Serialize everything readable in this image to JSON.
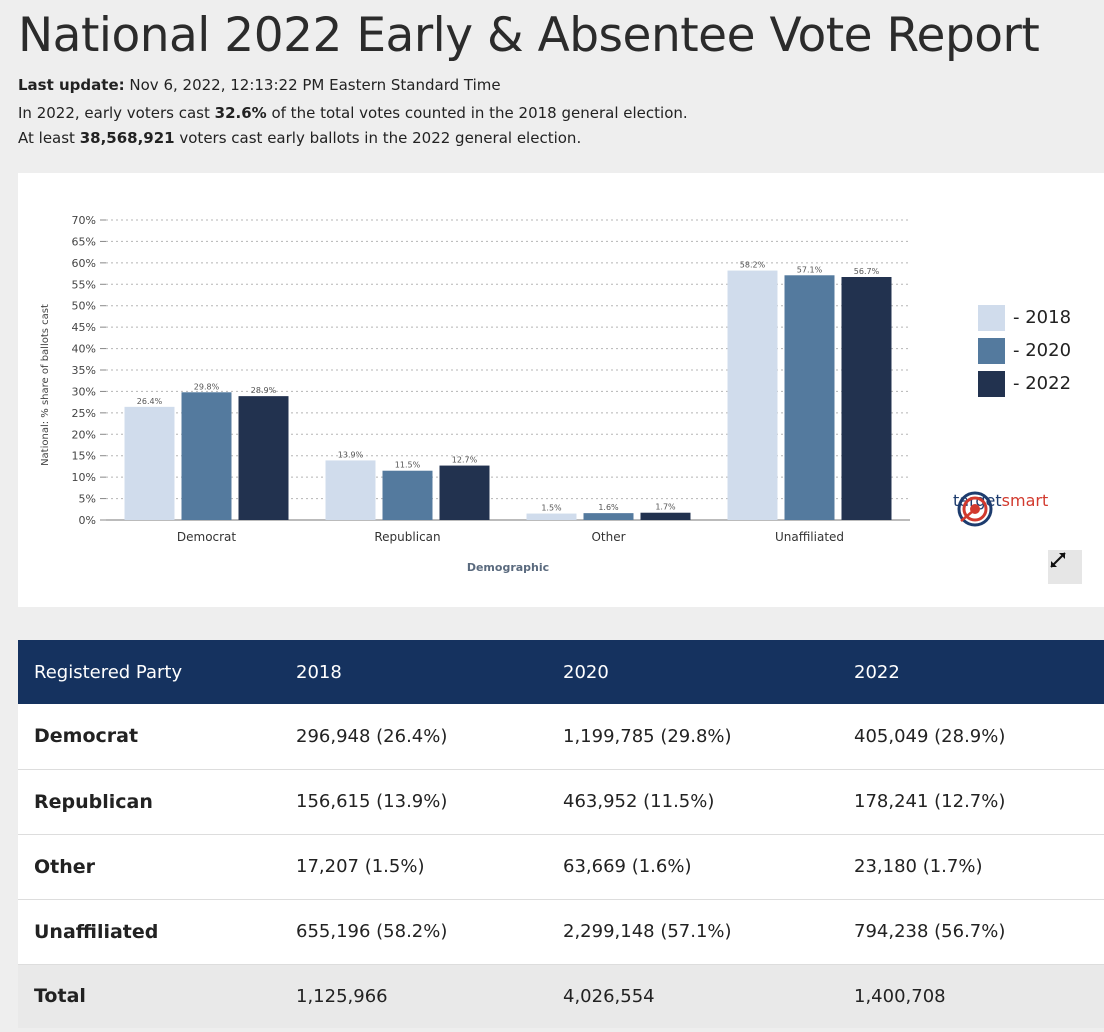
{
  "page": {
    "title": "National 2022 Early & Absentee Vote Report",
    "last_update_label": "Last update:",
    "last_update_value": "Nov 6, 2022, 12:13:22 PM Eastern Standard Time",
    "line1_pre": "In 2022, early voters cast ",
    "line1_bold": "32.6%",
    "line1_post": " of the total votes counted in the 2018 general election.",
    "line2_pre": "At least ",
    "line2_bold": "38,568,921",
    "line2_post": " voters cast early ballots in the 2022 general election."
  },
  "chart_data": {
    "type": "bar",
    "categories": [
      "Democrat",
      "Republican",
      "Other",
      "Unaffiliated"
    ],
    "series": [
      {
        "name": "2018",
        "values": [
          26.4,
          13.9,
          1.5,
          58.2
        ],
        "color": "#d0dcec"
      },
      {
        "name": "2020",
        "values": [
          29.8,
          11.5,
          1.6,
          57.1
        ],
        "color": "#547a9e"
      },
      {
        "name": "2022",
        "values": [
          28.9,
          12.7,
          1.7,
          56.7
        ],
        "color": "#22324f"
      }
    ],
    "data_labels": [
      [
        "26.4%",
        "13.9%",
        "1.5%",
        "58.2%"
      ],
      [
        "29.8%",
        "11.5%",
        "1.6%",
        "57.1%"
      ],
      [
        "28.9%",
        "12.7%",
        "1.7%",
        "56.7%"
      ]
    ],
    "yticks": [
      0,
      5,
      10,
      15,
      20,
      25,
      30,
      35,
      40,
      45,
      50,
      55,
      60,
      65,
      70
    ],
    "ytick_labels": [
      "0%",
      "5%",
      "10%",
      "15%",
      "20%",
      "25%",
      "30%",
      "35%",
      "40%",
      "45%",
      "50%",
      "55%",
      "60%",
      "65%",
      "70%"
    ],
    "ylim": [
      0,
      70
    ],
    "title": "",
    "xlabel": "Demographic",
    "ylabel": "National: % share of ballots cast",
    "grid": true,
    "legend_position": "right"
  },
  "legend": {
    "items": [
      {
        "label": "- 2018",
        "color": "#d0dcec"
      },
      {
        "label": "- 2020",
        "color": "#547a9e"
      },
      {
        "label": "- 2022",
        "color": "#22324f"
      }
    ]
  },
  "brand": {
    "text_a": "target",
    "text_b": "smart"
  },
  "icons": {
    "expand": "expand-icon",
    "brand_logo": "target-logo-icon"
  },
  "table": {
    "headers": [
      "Registered Party",
      "2018",
      "2020",
      "2022"
    ],
    "rows": [
      {
        "party": "Democrat",
        "y2018": "296,948 (26.4%)",
        "y2020": "1,199,785 (29.8%)",
        "y2022": "405,049 (28.9%)"
      },
      {
        "party": "Republican",
        "y2018": "156,615 (13.9%)",
        "y2020": "463,952 (11.5%)",
        "y2022": "178,241 (12.7%)"
      },
      {
        "party": "Other",
        "y2018": "17,207 (1.5%)",
        "y2020": "63,669 (1.6%)",
        "y2022": "23,180 (1.7%)"
      },
      {
        "party": "Unaffiliated",
        "y2018": "655,196 (58.2%)",
        "y2020": "2,299,148 (57.1%)",
        "y2022": "794,238 (56.7%)"
      }
    ],
    "total": {
      "party": "Total",
      "y2018": "1,125,966",
      "y2020": "4,026,554",
      "y2022": "1,400,708"
    }
  }
}
